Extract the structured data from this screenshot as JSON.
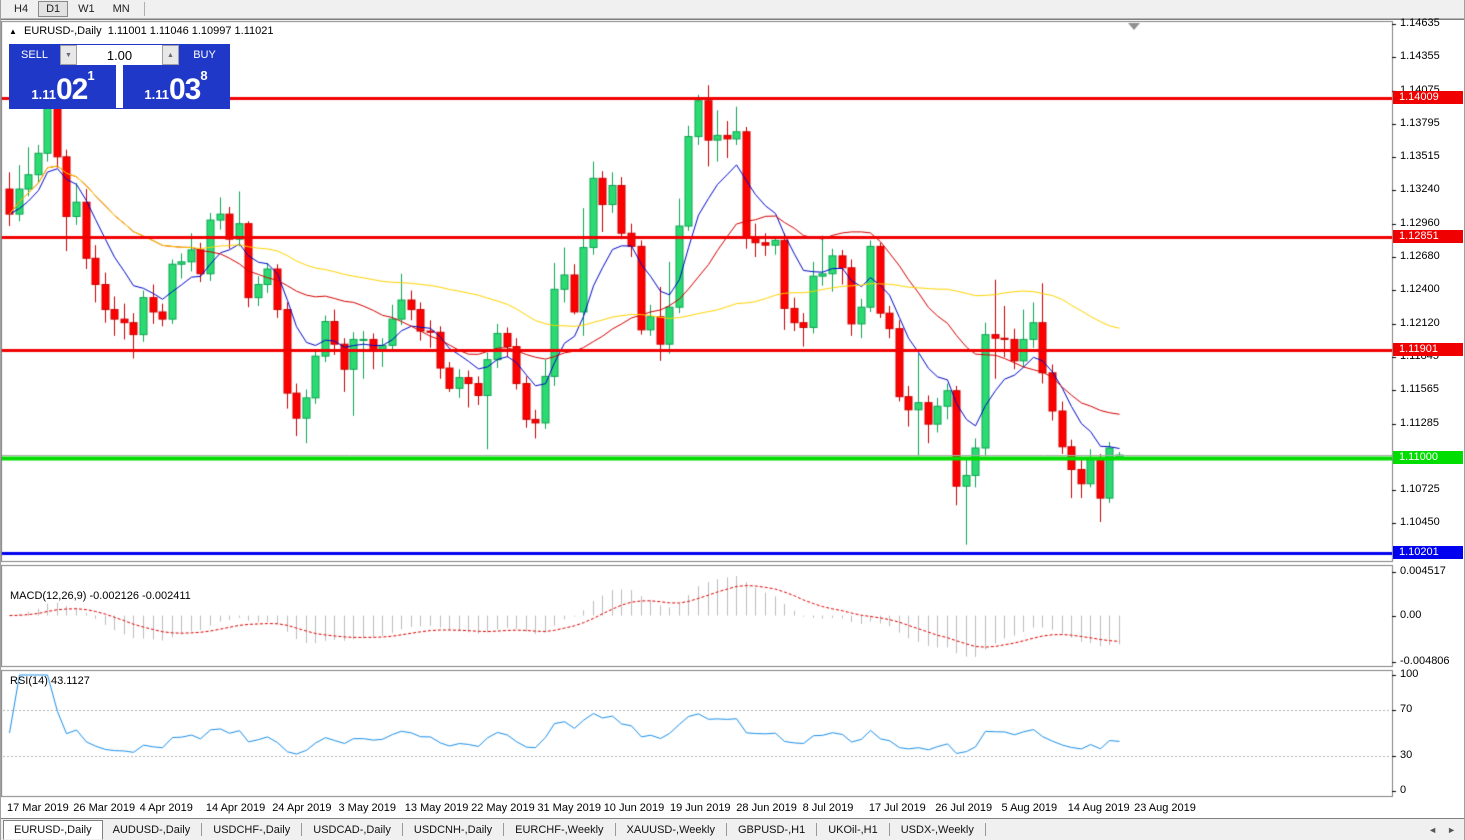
{
  "toolbar": {
    "timeframes": [
      {
        "label": "H4",
        "active": false
      },
      {
        "label": "D1",
        "active": true
      },
      {
        "label": "W1",
        "active": false
      },
      {
        "label": "MN",
        "active": false
      }
    ]
  },
  "chart_header": {
    "collapse_marker": "▲",
    "symbol_label": "EURUSD-,Daily",
    "ohlc_text": "1.11001 1.11046 1.10997 1.11021"
  },
  "trade_panel": {
    "sell_label": "SELL",
    "buy_label": "BUY",
    "volume_value": "1.00",
    "spin_down": "▼",
    "spin_up": "▲",
    "sell_price": {
      "prefix": "1.11",
      "main": "02",
      "sup": "1"
    },
    "buy_price": {
      "prefix": "1.11",
      "main": "03",
      "sup": "8"
    }
  },
  "colors": {
    "bull_fill": "#2BDB72",
    "bull_border": "#0EA554",
    "bear_fill": "#FE0000",
    "bear_border": "#CE0000",
    "ma_fast": "#0008C8",
    "ma_mid": "#D40000",
    "ma_slow": "#FFD400",
    "hline_red": "#F00000",
    "hline_green": "#00DD00",
    "hline_blue": "#0000F0",
    "current_price_line": "#ADADAD",
    "macd_hist": "#BDBDBD",
    "macd_signal": "#E00000",
    "rsi_line": "#1C8FE8",
    "rsi_levels": "#B5B5B5",
    "pane_border": "#808080",
    "accent_blue": "#2038C8"
  },
  "price_axis": {
    "ticks": [
      {
        "text": "1.14635",
        "price": 1.14635
      },
      {
        "text": "1.14355",
        "price": 1.14355
      },
      {
        "text": "1.14075",
        "price": 1.14075
      },
      {
        "text": "1.13795",
        "price": 1.13795
      },
      {
        "text": "1.13515",
        "price": 1.13515
      },
      {
        "text": "1.13240",
        "price": 1.1324
      },
      {
        "text": "1.12960",
        "price": 1.1296
      },
      {
        "text": "1.12680",
        "price": 1.1268
      },
      {
        "text": "1.12400",
        "price": 1.124
      },
      {
        "text": "1.12120",
        "price": 1.1212
      },
      {
        "text": "1.11845",
        "price": 1.11845
      },
      {
        "text": "1.11565",
        "price": 1.11565
      },
      {
        "text": "1.11285",
        "price": 1.11285
      },
      {
        "text": "1.10725",
        "price": 1.10725
      },
      {
        "text": "1.10450",
        "price": 1.1045
      }
    ],
    "tags": [
      {
        "text": "1.14009",
        "price": 1.14009,
        "bg": "#F00000",
        "fg": "#FFFFFF"
      },
      {
        "text": "1.12851",
        "price": 1.12851,
        "bg": "#F00000",
        "fg": "#FFFFFF"
      },
      {
        "text": "1.11901",
        "price": 1.11901,
        "bg": "#F00000",
        "fg": "#FFFFFF"
      },
      {
        "text": "1.11000",
        "price": 1.11,
        "bg": "#00DD00",
        "fg": "#FFFFFF"
      },
      {
        "text": "1.10201",
        "price": 1.10201,
        "bg": "#0000F0",
        "fg": "#FFFFFF"
      }
    ]
  },
  "chart_data": {
    "type": "candlestick",
    "symbol": "EURUSD-",
    "timeframe": "Daily",
    "y_max": 1.1465,
    "y_min": 1.10133,
    "moving_averages": [
      {
        "type": "ema",
        "period": 8,
        "color_key": "ma_fast"
      },
      {
        "type": "sma",
        "period": 20,
        "color_key": "ma_mid"
      },
      {
        "type": "sma",
        "period": 50,
        "color_key": "ma_slow"
      }
    ],
    "hlines": [
      {
        "price": 1.14009,
        "color_key": "hline_red",
        "width": 3
      },
      {
        "price": 1.12851,
        "color_key": "hline_red",
        "width": 3
      },
      {
        "price": 1.11901,
        "color_key": "hline_red",
        "width": 3
      },
      {
        "price": 1.11,
        "color_key": "hline_green",
        "width": 4
      },
      {
        "price": 1.10201,
        "color_key": "hline_blue",
        "width": 3
      }
    ],
    "current_price_line": {
      "price": 1.11021
    },
    "candles": [
      [
        1.1325,
        1.1339,
        1.1294,
        1.1304
      ],
      [
        1.1304,
        1.1345,
        1.1298,
        1.1325
      ],
      [
        1.1325,
        1.136,
        1.1319,
        1.1337
      ],
      [
        1.1337,
        1.1362,
        1.133,
        1.1355
      ],
      [
        1.1355,
        1.1405,
        1.1348,
        1.1393
      ],
      [
        1.1393,
        1.1402,
        1.1343,
        1.1352
      ],
      [
        1.1352,
        1.1358,
        1.1273,
        1.1302
      ],
      [
        1.1302,
        1.133,
        1.1295,
        1.1314
      ],
      [
        1.1314,
        1.1325,
        1.1258,
        1.1267
      ],
      [
        1.1267,
        1.1278,
        1.123,
        1.1245
      ],
      [
        1.1245,
        1.1255,
        1.1213,
        1.1224
      ],
      [
        1.1224,
        1.1235,
        1.1202,
        1.1216
      ],
      [
        1.1216,
        1.1229,
        1.1199,
        1.1213
      ],
      [
        1.1213,
        1.1221,
        1.1183,
        1.1203
      ],
      [
        1.1203,
        1.124,
        1.1197,
        1.1234
      ],
      [
        1.1234,
        1.1245,
        1.1212,
        1.1222
      ],
      [
        1.1222,
        1.1229,
        1.121,
        1.1216
      ],
      [
        1.1216,
        1.1266,
        1.1212,
        1.1262
      ],
      [
        1.1262,
        1.1271,
        1.125,
        1.1264
      ],
      [
        1.1264,
        1.1288,
        1.1256,
        1.1274
      ],
      [
        1.1274,
        1.128,
        1.1247,
        1.1254
      ],
      [
        1.1254,
        1.1305,
        1.1248,
        1.1299
      ],
      [
        1.1299,
        1.1318,
        1.1291,
        1.1304
      ],
      [
        1.1304,
        1.131,
        1.1275,
        1.1283
      ],
      [
        1.1283,
        1.1323,
        1.1277,
        1.1296
      ],
      [
        1.1296,
        1.1298,
        1.1226,
        1.1234
      ],
      [
        1.1234,
        1.1252,
        1.1227,
        1.1245
      ],
      [
        1.1245,
        1.1263,
        1.1238,
        1.1258
      ],
      [
        1.1258,
        1.1262,
        1.1217,
        1.1224
      ],
      [
        1.1224,
        1.123,
        1.1141,
        1.1154
      ],
      [
        1.1154,
        1.1162,
        1.1118,
        1.1133
      ],
      [
        1.1133,
        1.1157,
        1.1112,
        1.115
      ],
      [
        1.115,
        1.119,
        1.1145,
        1.1185
      ],
      [
        1.1185,
        1.1219,
        1.118,
        1.1214
      ],
      [
        1.1214,
        1.1224,
        1.1186,
        1.1195
      ],
      [
        1.1195,
        1.12,
        1.1155,
        1.1174
      ],
      [
        1.1174,
        1.1205,
        1.1135,
        1.1199
      ],
      [
        1.1199,
        1.1206,
        1.1166,
        1.1199
      ],
      [
        1.1199,
        1.1204,
        1.1174,
        1.119
      ],
      [
        1.119,
        1.12,
        1.1176,
        1.1194
      ],
      [
        1.1194,
        1.1228,
        1.119,
        1.1216
      ],
      [
        1.1216,
        1.1254,
        1.1211,
        1.1232
      ],
      [
        1.1232,
        1.124,
        1.1215,
        1.1224
      ],
      [
        1.1224,
        1.123,
        1.1198,
        1.1206
      ],
      [
        1.1206,
        1.1215,
        1.1192,
        1.1205
      ],
      [
        1.1205,
        1.121,
        1.1166,
        1.1175
      ],
      [
        1.1175,
        1.118,
        1.1155,
        1.1158
      ],
      [
        1.1158,
        1.1174,
        1.115,
        1.1167
      ],
      [
        1.1167,
        1.1173,
        1.1142,
        1.1162
      ],
      [
        1.1162,
        1.1168,
        1.1144,
        1.1152
      ],
      [
        1.1152,
        1.1188,
        1.1107,
        1.1182
      ],
      [
        1.1182,
        1.1212,
        1.1175,
        1.1204
      ],
      [
        1.1204,
        1.1209,
        1.1184,
        1.1193
      ],
      [
        1.1193,
        1.12,
        1.1157,
        1.1162
      ],
      [
        1.1162,
        1.1168,
        1.1125,
        1.1132
      ],
      [
        1.1132,
        1.114,
        1.1116,
        1.1129
      ],
      [
        1.1129,
        1.1182,
        1.1124,
        1.1168
      ],
      [
        1.1168,
        1.1263,
        1.116,
        1.1241
      ],
      [
        1.1241,
        1.1276,
        1.123,
        1.1253
      ],
      [
        1.1253,
        1.1262,
        1.122,
        1.1222
      ],
      [
        1.1222,
        1.1309,
        1.1202,
        1.1276
      ],
      [
        1.1276,
        1.1348,
        1.127,
        1.1334
      ],
      [
        1.1334,
        1.134,
        1.1289,
        1.1312
      ],
      [
        1.1312,
        1.1339,
        1.1305,
        1.1328
      ],
      [
        1.1328,
        1.1335,
        1.1283,
        1.1288
      ],
      [
        1.1288,
        1.1296,
        1.1268,
        1.1277
      ],
      [
        1.1277,
        1.1282,
        1.1203,
        1.1207
      ],
      [
        1.1207,
        1.1228,
        1.1202,
        1.1218
      ],
      [
        1.1218,
        1.1243,
        1.1181,
        1.1195
      ],
      [
        1.1195,
        1.1264,
        1.1187,
        1.1226
      ],
      [
        1.1226,
        1.1317,
        1.1221,
        1.1294
      ],
      [
        1.1294,
        1.1378,
        1.129,
        1.1369
      ],
      [
        1.1369,
        1.1404,
        1.1362,
        1.1399
      ],
      [
        1.1399,
        1.1412,
        1.1344,
        1.1366
      ],
      [
        1.1366,
        1.1391,
        1.1348,
        1.137
      ],
      [
        1.137,
        1.1382,
        1.1351,
        1.1367
      ],
      [
        1.1367,
        1.1394,
        1.1362,
        1.1373
      ],
      [
        1.1373,
        1.1377,
        1.1275,
        1.1285
      ],
      [
        1.1285,
        1.1296,
        1.1268,
        1.128
      ],
      [
        1.128,
        1.1288,
        1.1269,
        1.1278
      ],
      [
        1.1278,
        1.1285,
        1.127,
        1.1282
      ],
      [
        1.1282,
        1.1288,
        1.1207,
        1.1225
      ],
      [
        1.1225,
        1.1234,
        1.1206,
        1.1213
      ],
      [
        1.1213,
        1.1221,
        1.1193,
        1.1209
      ],
      [
        1.1209,
        1.1264,
        1.1204,
        1.1252
      ],
      [
        1.1252,
        1.1286,
        1.1244,
        1.1254
      ],
      [
        1.1254,
        1.1275,
        1.1239,
        1.1269
      ],
      [
        1.1269,
        1.1274,
        1.1245,
        1.1259
      ],
      [
        1.1259,
        1.1266,
        1.1202,
        1.1212
      ],
      [
        1.1212,
        1.1233,
        1.12,
        1.1226
      ],
      [
        1.1226,
        1.1282,
        1.1222,
        1.1277
      ],
      [
        1.1277,
        1.128,
        1.1217,
        1.1221
      ],
      [
        1.1221,
        1.1227,
        1.12,
        1.1208
      ],
      [
        1.1208,
        1.1215,
        1.1147,
        1.1151
      ],
      [
        1.1151,
        1.116,
        1.1126,
        1.114
      ],
      [
        1.114,
        1.1187,
        1.1101,
        1.1146
      ],
      [
        1.1146,
        1.1152,
        1.1112,
        1.1128
      ],
      [
        1.1128,
        1.115,
        1.1121,
        1.1143
      ],
      [
        1.1143,
        1.1162,
        1.1132,
        1.1156
      ],
      [
        1.1156,
        1.116,
        1.106,
        1.1076
      ],
      [
        1.1076,
        1.1098,
        1.1027,
        1.1085
      ],
      [
        1.1085,
        1.1116,
        1.1075,
        1.1108
      ],
      [
        1.1108,
        1.1213,
        1.1101,
        1.1203
      ],
      [
        1.1203,
        1.1249,
        1.1166,
        1.12
      ],
      [
        1.12,
        1.1227,
        1.1184,
        1.1199
      ],
      [
        1.1199,
        1.1208,
        1.1174,
        1.1181
      ],
      [
        1.1181,
        1.1224,
        1.1176,
        1.1199
      ],
      [
        1.1199,
        1.123,
        1.1192,
        1.1213
      ],
      [
        1.1213,
        1.1246,
        1.1162,
        1.1171
      ],
      [
        1.1171,
        1.1178,
        1.1131,
        1.1139
      ],
      [
        1.1139,
        1.1147,
        1.1103,
        1.1109
      ],
      [
        1.1109,
        1.1115,
        1.1066,
        1.109
      ],
      [
        1.109,
        1.1098,
        1.1066,
        1.1078
      ],
      [
        1.1078,
        1.1107,
        1.1075,
        1.1099
      ],
      [
        1.1099,
        1.1103,
        1.1046,
        1.1066
      ],
      [
        1.1066,
        1.1113,
        1.1062,
        1.1108
      ],
      [
        1.11001,
        1.11046,
        1.10997,
        1.11021
      ]
    ]
  },
  "macd_panel": {
    "label": "MACD(12,26,9) -0.002126 -0.002411",
    "params": {
      "fast": 12,
      "slow": 26,
      "signal": 9
    },
    "y_max": 0.004517,
    "y_min": -0.004806,
    "axis": [
      {
        "text": "0.004517",
        "value": 0.004517
      },
      {
        "text": "0.00",
        "value": 0.0
      },
      {
        "text": "-0.004806",
        "value": -0.004806
      }
    ]
  },
  "rsi_panel": {
    "label": "RSI(14) 43.1127",
    "period": 14,
    "levels": [
      70,
      30
    ],
    "axis": [
      {
        "text": "100",
        "value": 100
      },
      {
        "text": "70",
        "value": 70
      },
      {
        "text": "30",
        "value": 30
      },
      {
        "text": "0",
        "value": 0
      }
    ]
  },
  "date_axis": {
    "labels": [
      "17 Mar 2019",
      "26 Mar 2019",
      "4 Apr 2019",
      "14 Apr 2019",
      "24 Apr 2019",
      "3 May 2019",
      "13 May 2019",
      "22 May 2019",
      "31 May 2019",
      "10 Jun 2019",
      "19 Jun 2019",
      "28 Jun 2019",
      "8 Jul 2019",
      "17 Jul 2019",
      "26 Jul 2019",
      "5 Aug 2019",
      "14 Aug 2019",
      "23 Aug 2019"
    ]
  },
  "tabs": {
    "items": [
      {
        "label": "EURUSD-,Daily",
        "active": true
      },
      {
        "label": "AUDUSD-,Daily",
        "active": false
      },
      {
        "label": "USDCHF-,Daily",
        "active": false
      },
      {
        "label": "USDCAD-,Daily",
        "active": false
      },
      {
        "label": "USDCNH-,Daily",
        "active": false
      },
      {
        "label": "EURCHF-,Weekly",
        "active": false
      },
      {
        "label": "XAUUSD-,Weekly",
        "active": false
      },
      {
        "label": "GBPUSD-,H1",
        "active": false
      },
      {
        "label": "UKOil-,H1",
        "active": false
      },
      {
        "label": "USDX-,Weekly",
        "active": false
      }
    ],
    "scroll_left": "◄",
    "scroll_right": "►"
  }
}
